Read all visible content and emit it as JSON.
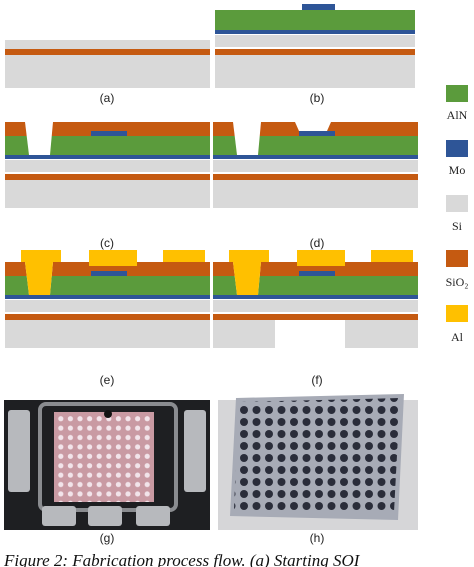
{
  "panels": [
    {
      "label": "(a)"
    },
    {
      "label": "(b)"
    },
    {
      "label": "(c)"
    },
    {
      "label": "(d)"
    },
    {
      "label": "(e)"
    },
    {
      "label": "(f)"
    },
    {
      "label": "(g)"
    },
    {
      "label": "(h)"
    }
  ],
  "legend": [
    {
      "label": "AlN"
    },
    {
      "label": "Mo"
    },
    {
      "label": "Si"
    },
    {
      "label": "SiO₂"
    },
    {
      "label": "Al"
    }
  ],
  "caption": "Figure 2: Fabrication process flow. (a) Starting SOI"
}
